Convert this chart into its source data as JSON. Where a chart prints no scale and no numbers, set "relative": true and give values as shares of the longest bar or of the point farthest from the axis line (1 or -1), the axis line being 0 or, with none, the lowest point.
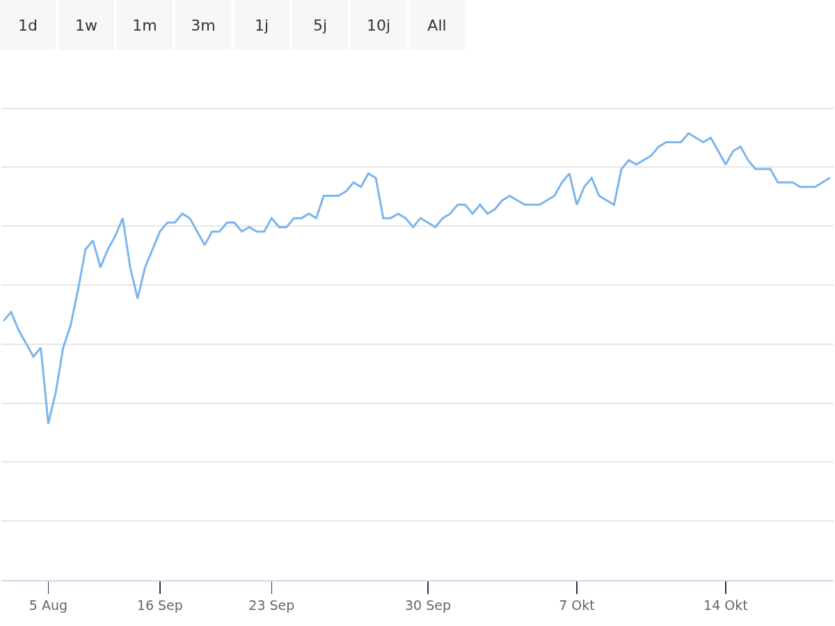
{
  "chart_data": {
    "type": "line",
    "relative": true,
    "grid": "y",
    "marker": "none",
    "line_style": "solid",
    "annotations": [
      "1d",
      "1w",
      "1m",
      "3m",
      "1j",
      "5j",
      "10j",
      "All"
    ],
    "categories": [
      null,
      null,
      null,
      null,
      null,
      null,
      "5 Aug",
      null,
      null,
      null,
      null,
      null,
      null,
      null,
      null,
      null,
      null,
      null,
      null,
      null,
      null,
      "16 Sep",
      null,
      null,
      null,
      null,
      null,
      null,
      null,
      null,
      null,
      null,
      null,
      null,
      null,
      null,
      "23 Sep",
      null,
      null,
      null,
      null,
      null,
      null,
      null,
      null,
      null,
      null,
      null,
      null,
      null,
      null,
      null,
      null,
      null,
      null,
      null,
      null,
      "30 Sep",
      null,
      null,
      null,
      null,
      null,
      null,
      null,
      null,
      null,
      null,
      null,
      null,
      null,
      null,
      null,
      null,
      null,
      null,
      null,
      "7 Okt",
      null,
      null,
      null,
      null,
      null,
      null,
      null,
      null,
      null,
      null,
      null,
      null,
      null,
      null,
      null,
      null,
      null,
      null,
      null,
      "14 Okt",
      null,
      null,
      null,
      null,
      null,
      null,
      null,
      null,
      null,
      null,
      null,
      null,
      null,
      null
    ],
    "series": [
      {
        "color": "#7cb5ec",
        "values": [
          0.58,
          0.6,
          0.56,
          0.53,
          0.5,
          0.52,
          0.35,
          0.42,
          0.52,
          0.57,
          0.65,
          0.74,
          0.76,
          0.7,
          0.74,
          0.77,
          0.81,
          0.7,
          0.63,
          0.7,
          0.74,
          0.78,
          0.8,
          0.8,
          0.82,
          0.81,
          0.78,
          0.75,
          0.78,
          0.78,
          0.8,
          0.8,
          0.78,
          0.79,
          0.78,
          0.78,
          0.81,
          0.79,
          0.79,
          0.81,
          0.81,
          0.82,
          0.81,
          0.86,
          0.86,
          0.86,
          0.87,
          0.89,
          0.88,
          0.91,
          0.9,
          0.81,
          0.81,
          0.82,
          0.81,
          0.79,
          0.81,
          0.8,
          0.79,
          0.81,
          0.82,
          0.84,
          0.84,
          0.82,
          0.84,
          0.82,
          0.83,
          0.85,
          0.86,
          0.85,
          0.84,
          0.84,
          0.84,
          0.85,
          0.86,
          0.89,
          0.91,
          0.84,
          0.88,
          0.9,
          0.86,
          0.85,
          0.84,
          0.92,
          0.94,
          0.93,
          0.94,
          0.95,
          0.97,
          0.98,
          0.98,
          0.98,
          1,
          0.99,
          0.98,
          0.99,
          0.96,
          0.93,
          0.96,
          0.97,
          0.94,
          0.92,
          0.92,
          0.92,
          0.89,
          0.89,
          0.89,
          0.88,
          0.88,
          0.88,
          0.89,
          0.9
        ]
      }
    ]
  }
}
